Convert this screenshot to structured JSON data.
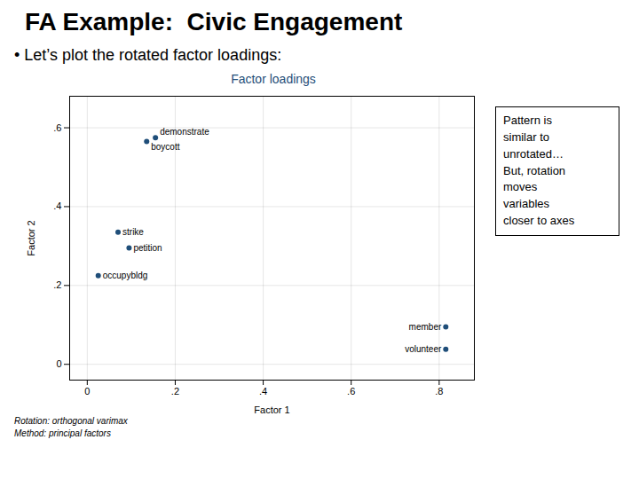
{
  "chart_data": {
    "type": "scatter",
    "title": "FA Example:  Civic Engagement",
    "subtitle": "• Let’s plot the rotated factor loadings:",
    "chart_title": "Factor loadings",
    "xlabel": "Factor 1",
    "ylabel": "Factor 2",
    "x": [
      0.135,
      0.155,
      0.07,
      0.095,
      0.025,
      0.815,
      0.815
    ],
    "values": [
      0.565,
      0.575,
      0.335,
      0.295,
      0.225,
      0.095,
      0.038
    ],
    "labels": [
      "boycott",
      "demonstrate",
      "strike",
      "petition",
      "occupybldg",
      "member",
      "volunteer"
    ],
    "color": "#1F4E79",
    "xlim": [
      -0.04,
      0.88
    ],
    "ylim": [
      -0.04,
      0.68
    ],
    "xticks": [
      0,
      {
        "value": 0.2,
        "label": ".2"
      },
      {
        "value": 0.4,
        "label": ".4"
      },
      {
        "value": 0.6,
        "label": ".6"
      },
      {
        "value": 0.8,
        "label": ".8"
      }
    ],
    "yticks": [
      0,
      {
        "value": 0.2,
        "label": ".2"
      },
      {
        "value": 0.4,
        "label": ".4"
      },
      {
        "value": 0.6,
        "label": ".6"
      }
    ],
    "grid": true,
    "annotations": [
      "Pattern is\nsimilar to\nunrotated…\nBut, rotation\nmoves\nvariables\ncloser to axes"
    ],
    "footnotes": [
      "Rotation: orthogonal varimax",
      "Method: principal factors"
    ]
  }
}
